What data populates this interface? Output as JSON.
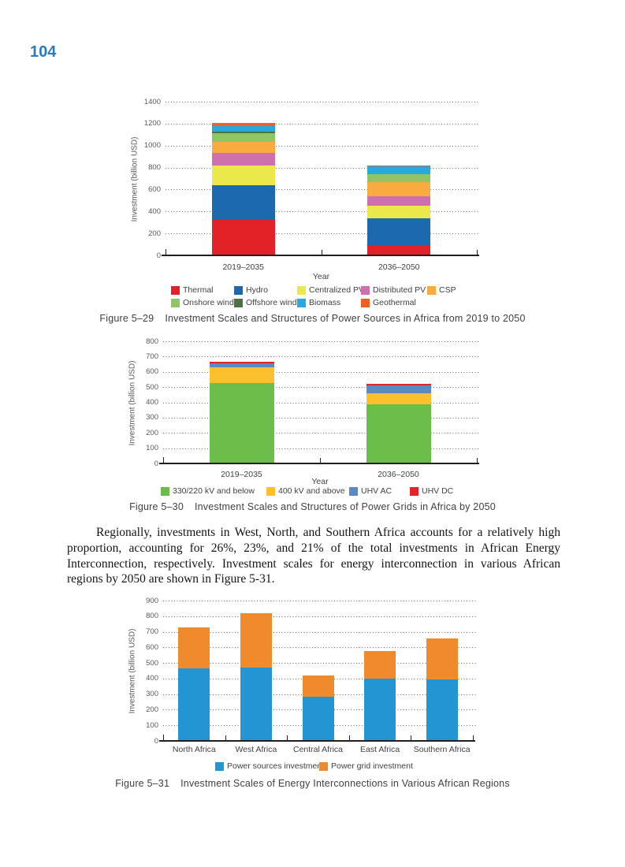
{
  "page": {
    "number": "104"
  },
  "paragraph": {
    "text": "Regionally, investments in West, North, and Southern Africa accounts for a relatively high proportion, accounting for 26%, 23%, and 21% of the total investments in African Energy Interconnection, respectively. Investment scales for energy interconnection in various African regions by 2050 are shown in Figure 5-31."
  },
  "chart_data": [
    {
      "id": "fig-5-29",
      "type": "bar",
      "stacked": true,
      "caption_label": "Figure 5–29",
      "caption_title": "Investment Scales and Structures of Power Sources in Africa from 2019 to 2050",
      "xlabel": "Year",
      "ylabel": "Investment (billion USD)",
      "ylim": [
        0,
        1400
      ],
      "ytick_step": 200,
      "grid": true,
      "legend_position": "bottom",
      "categories": [
        "2019–2035",
        "2036–2050"
      ],
      "series": [
        {
          "name": "Thermal",
          "color": "#e32227",
          "values": [
            320,
            95
          ]
        },
        {
          "name": "Hydro",
          "color": "#1c69b0",
          "values": [
            320,
            240
          ]
        },
        {
          "name": "Centralized PV",
          "color": "#ebe84b",
          "values": [
            180,
            120
          ]
        },
        {
          "name": "Distributed PV",
          "color": "#cf70ae",
          "values": [
            110,
            80
          ]
        },
        {
          "name": "CSP",
          "color": "#f9ab40",
          "values": [
            105,
            130
          ]
        },
        {
          "name": "Onshore wind",
          "color": "#8dc663",
          "values": [
            80,
            75
          ]
        },
        {
          "name": "Offshore wind",
          "color": "#4d7045",
          "values": [
            10,
            0
          ]
        },
        {
          "name": "Biomass",
          "color": "#28a8e0",
          "values": [
            50,
            68
          ]
        },
        {
          "name": "Geothermal",
          "color": "#ee6023",
          "values": [
            30,
            12
          ]
        }
      ]
    },
    {
      "id": "fig-5-30",
      "type": "bar",
      "stacked": true,
      "caption_label": "Figure 5–30",
      "caption_title": "Investment Scales and Structures of Power Grids in Africa by 2050",
      "xlabel": "Year",
      "ylabel": "Investment (billion USD)",
      "ylim": [
        0,
        800
      ],
      "ytick_step": 100,
      "grid": true,
      "legend_position": "bottom",
      "categories": [
        "2019–2035",
        "2036–2050"
      ],
      "series": [
        {
          "name": "330/220 kV and below",
          "color": "#6cbe4b",
          "values": [
            525,
            388
          ]
        },
        {
          "name": "400 kV and above",
          "color": "#fcc02e",
          "values": [
            103,
            73
          ]
        },
        {
          "name": "UHV AC",
          "color": "#5a8ac4",
          "values": [
            28,
            50
          ]
        },
        {
          "name": "UHV DC",
          "color": "#e02428",
          "values": [
            12,
            12
          ]
        }
      ]
    },
    {
      "id": "fig-5-31",
      "type": "bar",
      "stacked": true,
      "caption_label": "Figure 5–31",
      "caption_title": "Investment Scales of Energy Interconnections in Various African Regions",
      "xlabel": "",
      "ylabel": "Investment (billion USD)",
      "ylim": [
        0,
        900
      ],
      "ytick_step": 100,
      "grid": true,
      "legend_position": "bottom",
      "categories": [
        "North Africa",
        "West Africa",
        "Central Africa",
        "East Africa",
        "Southern Africa"
      ],
      "series": [
        {
          "name": "Power sources investment",
          "color": "#2295d2",
          "values": [
            465,
            470,
            283,
            398,
            395
          ]
        },
        {
          "name": "Power grid investment",
          "color": "#ef8b2c",
          "values": [
            265,
            350,
            135,
            177,
            260
          ]
        }
      ]
    }
  ]
}
